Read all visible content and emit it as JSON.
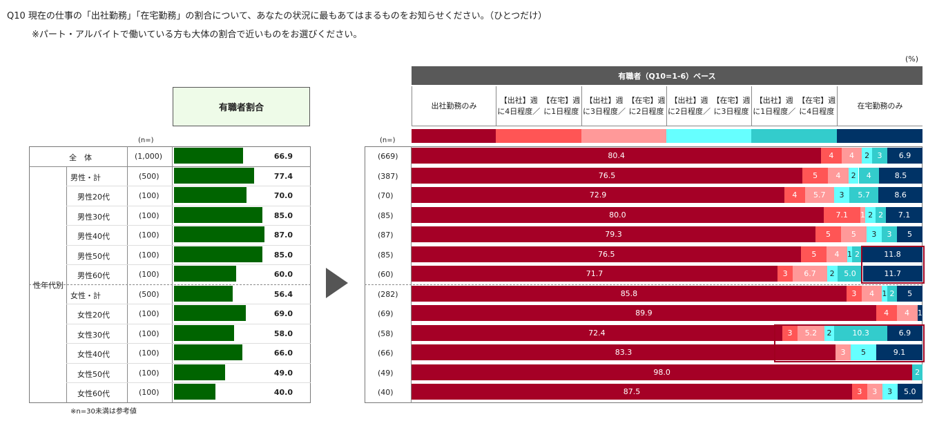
{
  "question": "Q10 現在の仕事の「出社勤務」「在宅勤務」の割合について、あなたの状況に最もあてはまるものをお知らせください。（ひとつだけ）",
  "note": "※パート・アルバイトで働いている方も大体の割合で近いものをお選びください。",
  "unit": "(%)",
  "left_header": "有職者割合",
  "n_header": "(n=)",
  "group_total_label": "全　体",
  "group_label": "性年代別",
  "footnote": "※n=30未満は参考値",
  "right_title": "有職者（Q10=1-6）ベース",
  "colors": {
    "green_bar": "#006400",
    "s1": "#a50026",
    "s2": "#ff5555",
    "s3": "#ff9999",
    "s4": "#66ffff",
    "s5": "#33cccc",
    "s6": "#003366",
    "highlight": "#a00020"
  },
  "chart_data": [
    {
      "type": "bar",
      "title": "有職者割合",
      "categories": [
        "全　体",
        "男性・計",
        "男性20代",
        "男性30代",
        "男性40代",
        "男性50代",
        "男性60代",
        "女性・計",
        "女性20代",
        "女性30代",
        "女性40代",
        "女性50代",
        "女性60代"
      ],
      "n": [
        "(1,000)",
        "(500)",
        "(100)",
        "(100)",
        "(100)",
        "(100)",
        "(100)",
        "(500)",
        "(100)",
        "(100)",
        "(100)",
        "(100)",
        "(100)"
      ],
      "values": [
        66.9,
        77.4,
        70.0,
        85.0,
        87.0,
        85.0,
        60.0,
        56.4,
        69.0,
        58.0,
        66.0,
        49.0,
        40.0
      ],
      "labels": [
        "66.9",
        "77.4",
        "70.0",
        "85.0",
        "87.0",
        "85.0",
        "60.0",
        "56.4",
        "69.0",
        "58.0",
        "66.0",
        "49.0",
        "40.0"
      ]
    },
    {
      "type": "bar",
      "title": "有職者（Q10=1-6）ベース",
      "n": [
        "(669)",
        "(387)",
        "(70)",
        "(85)",
        "(87)",
        "(85)",
        "(60)",
        "(282)",
        "(69)",
        "(58)",
        "(66)",
        "(49)",
        "(40)"
      ],
      "series": [
        {
          "name": "出社勤務のみ",
          "values": [
            80.4,
            76.5,
            72.9,
            80.0,
            79.3,
            76.5,
            71.7,
            85.8,
            89.9,
            72.4,
            83.3,
            98.0,
            87.5
          ],
          "labels": [
            "80.4",
            "76.5",
            "72.9",
            "80.0",
            "79.3",
            "76.5",
            "71.7",
            "85.8",
            "89.9",
            "72.4",
            "83.3",
            "98.0",
            "87.5"
          ]
        },
        {
          "name": "【出社】週に4日程度／【在宅】週に1日程度",
          "values": [
            4,
            5,
            4,
            7.1,
            5,
            5,
            3,
            3,
            4,
            3,
            0,
            0,
            3
          ],
          "labels": [
            "4",
            "5",
            "4",
            "7.1",
            "5",
            "5",
            "3",
            "3",
            "4",
            "3",
            "",
            "",
            "3"
          ]
        },
        {
          "name": "【出社】週に3日程度／【在宅】週に2日程度",
          "values": [
            4,
            4,
            5.7,
            1,
            5,
            4,
            6.7,
            4,
            4,
            5.2,
            3,
            0,
            3
          ],
          "labels": [
            "4",
            "4",
            "5.7",
            "1",
            "5",
            "4",
            "6.7",
            "4",
            "4",
            "5.2",
            "3",
            "",
            "3"
          ]
        },
        {
          "name": "【出社】週に2日程度／【在宅】週に3日程度",
          "values": [
            2,
            2,
            3,
            2,
            3,
            1,
            2,
            1,
            0,
            2,
            5,
            0,
            3
          ],
          "labels": [
            "2",
            "2",
            "3",
            "2",
            "3",
            "1",
            "2",
            "1",
            "",
            "2",
            "5",
            "",
            "3"
          ]
        },
        {
          "name": "【出社】週に1日程度／【在宅】週に4日程度",
          "values": [
            3,
            4,
            5.7,
            2,
            3,
            2,
            5.0,
            2,
            0,
            10.3,
            0,
            2,
            0
          ],
          "labels": [
            "3",
            "4",
            "5.7",
            "2",
            "3",
            "2",
            "5.0",
            "2",
            "",
            "10.3",
            "",
            "2",
            ""
          ]
        },
        {
          "name": "在宅勤務のみ",
          "values": [
            6.9,
            8.5,
            8.6,
            7.1,
            5,
            11.8,
            11.7,
            5,
            1,
            6.9,
            9.1,
            0,
            5.0
          ],
          "labels": [
            "6.9",
            "8.5",
            "8.6",
            "7.1",
            "5",
            "11.8",
            "11.7",
            "5",
            "1",
            "6.9",
            "9.1",
            "",
            "5.0"
          ]
        }
      ]
    }
  ]
}
